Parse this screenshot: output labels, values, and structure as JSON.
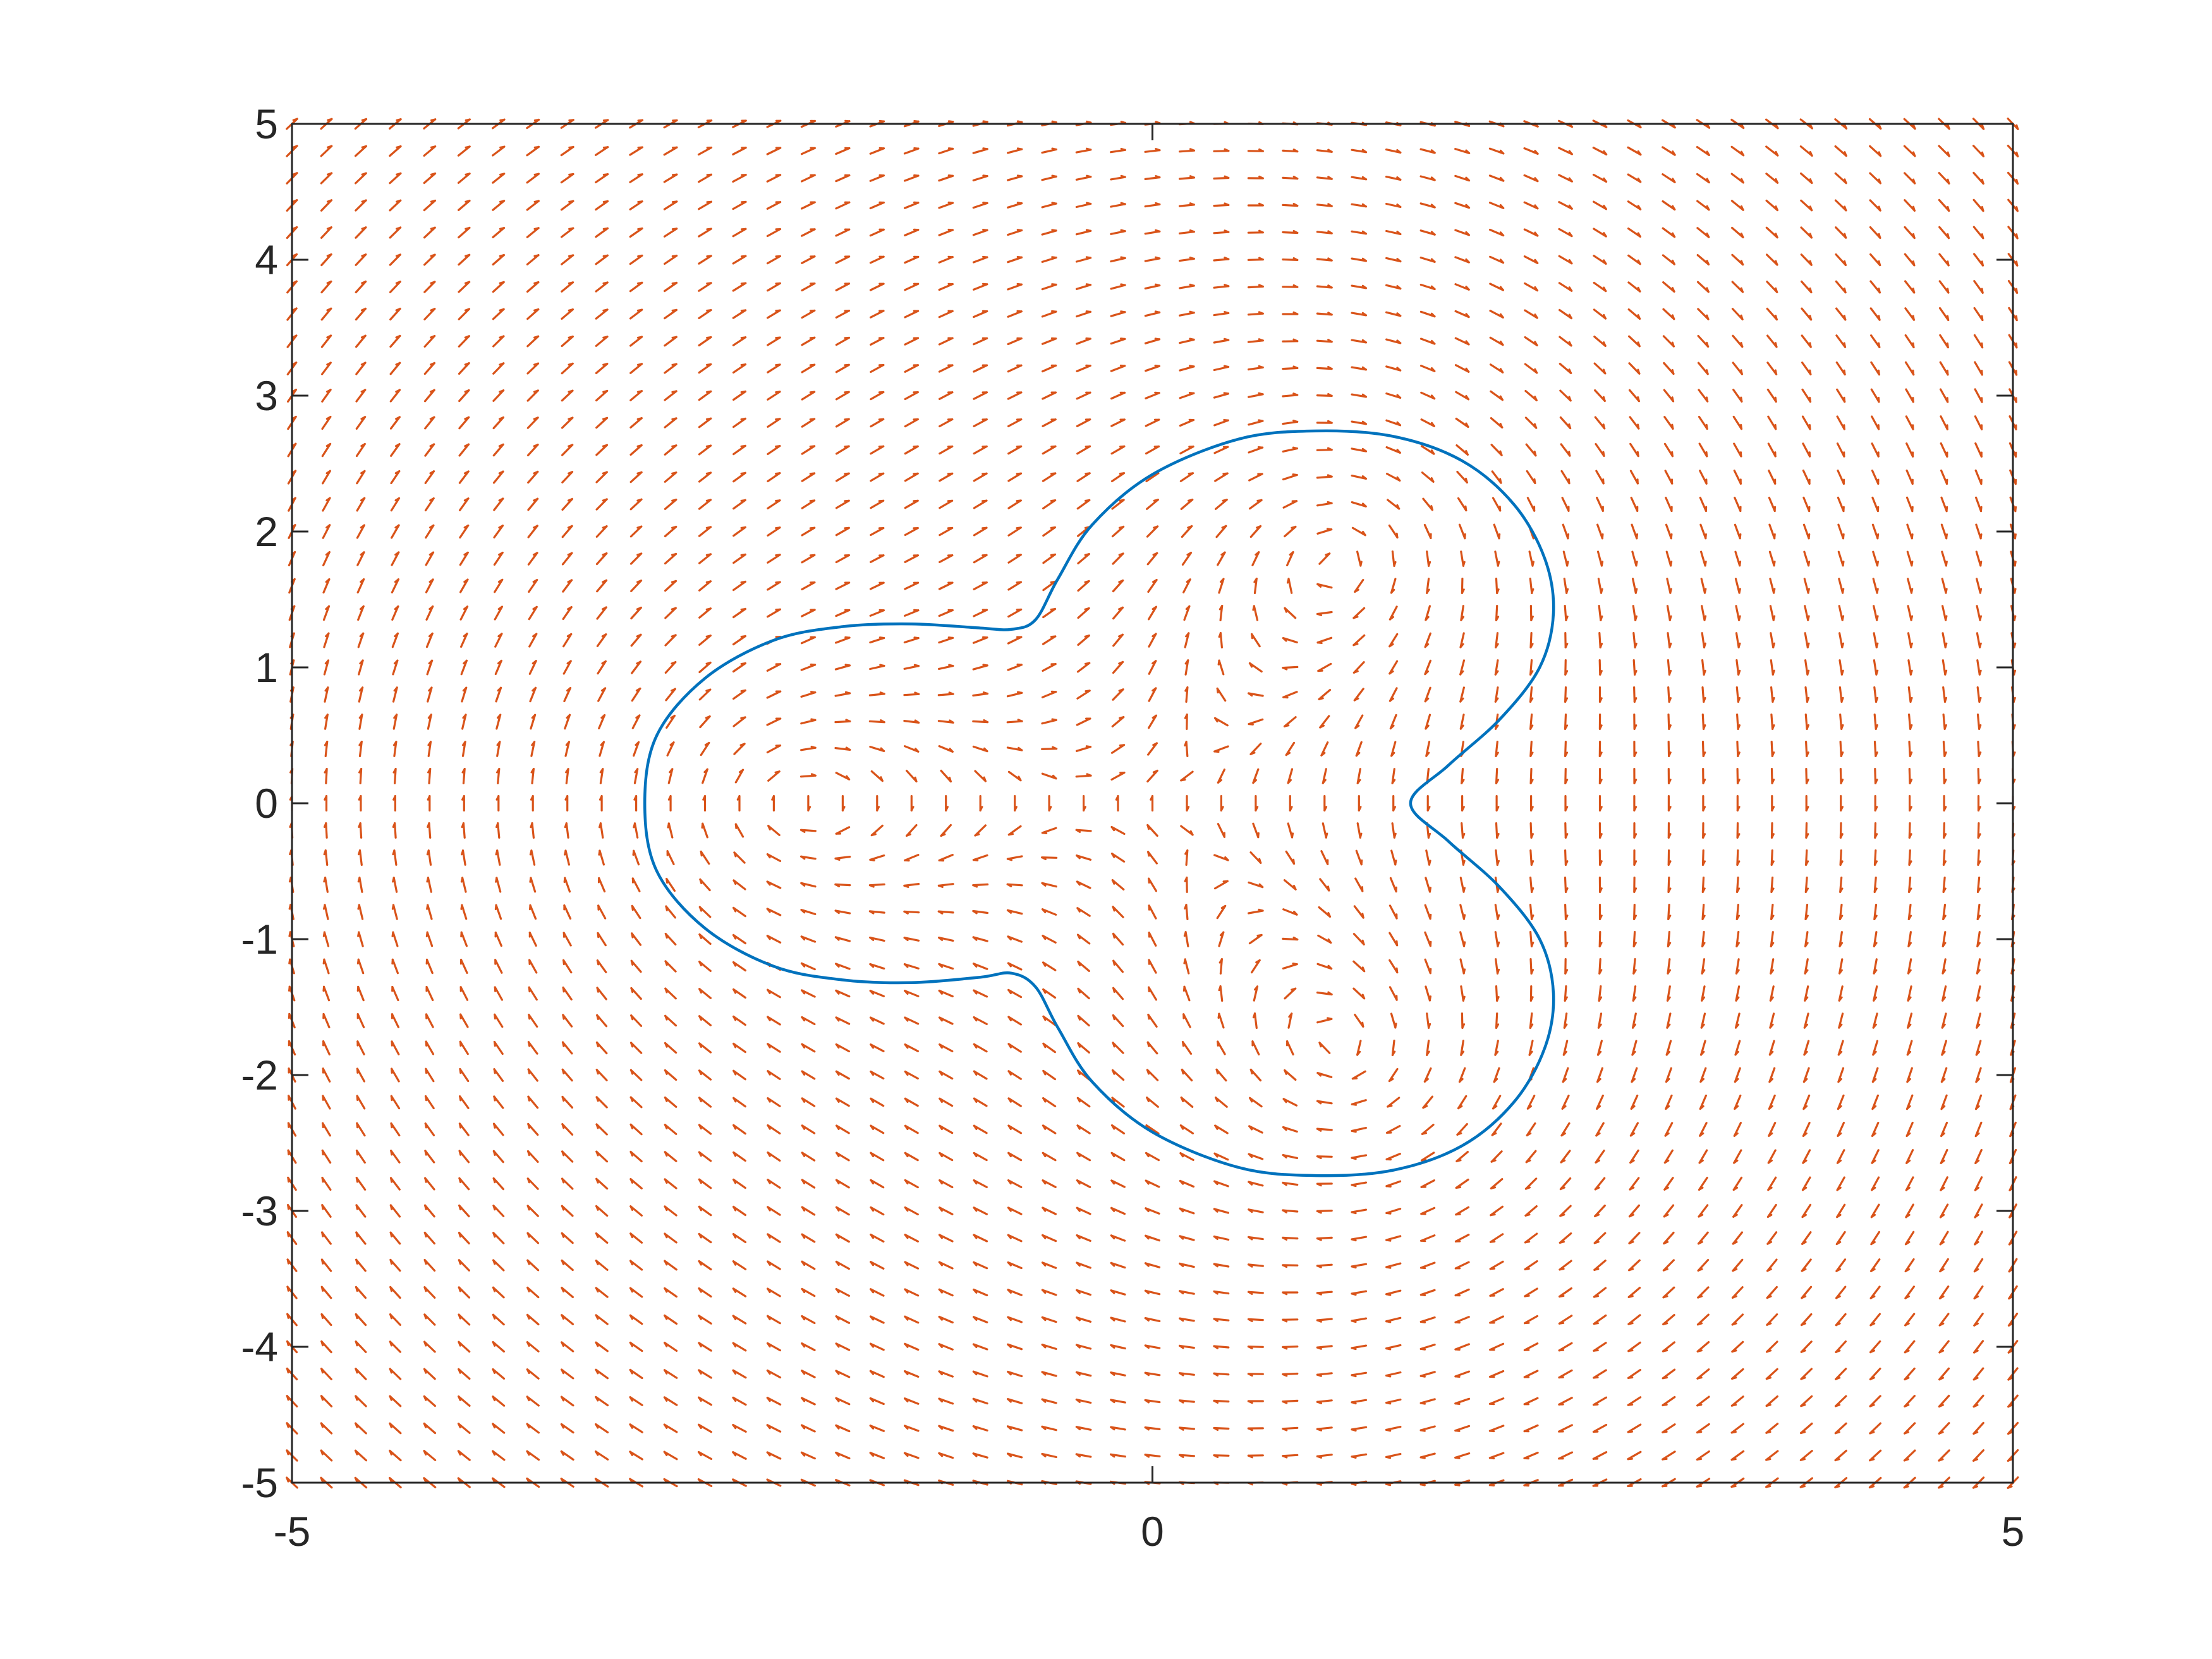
{
  "chart_data": {
    "type": "quiver",
    "title": "",
    "xlabel": "",
    "ylabel": "",
    "xlim": [
      -5,
      5
    ],
    "ylim": [
      -5,
      5
    ],
    "grid": false,
    "legend": "none",
    "x_ticks": [
      -5,
      0,
      5
    ],
    "x_tick_labels": [
      "-5",
      "0",
      "5"
    ],
    "y_ticks": [
      -5,
      -4,
      -3,
      -2,
      -1,
      0,
      1,
      2,
      3,
      4,
      5
    ],
    "y_tick_labels": [
      "-5",
      "-4",
      "-3",
      "-2",
      "-1",
      "0",
      "1",
      "2",
      "3",
      "4",
      "5"
    ],
    "series": [
      {
        "kind": "vector_field",
        "color": "#D95319",
        "grid_x": [
          -5,
          5
        ],
        "grid_y": [
          -5,
          5
        ],
        "grid_points": 51,
        "field": "rotation about three vortices at (-2.3, 0), (1.2, 2.0), (1.2, -2.0)",
        "vortices": [
          [
            -2.3,
            0.0
          ],
          [
            1.2,
            2.0
          ],
          [
            1.2,
            -2.0
          ]
        ]
      },
      {
        "kind": "curve",
        "color": "#0072BD",
        "closed": true,
        "points": [
          [
            0.95,
            2.74
          ],
          [
            1.4,
            2.7
          ],
          [
            1.8,
            2.52
          ],
          [
            2.1,
            2.2
          ],
          [
            2.28,
            1.8
          ],
          [
            2.33,
            1.4
          ],
          [
            2.25,
            1.0
          ],
          [
            2.02,
            0.62
          ],
          [
            1.72,
            0.28
          ],
          [
            1.5,
            0.0
          ],
          [
            1.72,
            -0.28
          ],
          [
            2.02,
            -0.62
          ],
          [
            2.25,
            -1.0
          ],
          [
            2.33,
            -1.4
          ],
          [
            2.28,
            -1.8
          ],
          [
            2.1,
            -2.2
          ],
          [
            1.8,
            -2.52
          ],
          [
            1.4,
            -2.7
          ],
          [
            0.95,
            -2.74
          ],
          [
            0.5,
            -2.68
          ],
          [
            0.0,
            -2.42
          ],
          [
            -0.35,
            -2.05
          ],
          [
            -0.55,
            -1.65
          ],
          [
            -0.68,
            -1.35
          ],
          [
            -0.82,
            -1.25
          ],
          [
            -1.0,
            -1.28
          ],
          [
            -1.4,
            -1.32
          ],
          [
            -1.8,
            -1.3
          ],
          [
            -2.2,
            -1.2
          ],
          [
            -2.6,
            -0.92
          ],
          [
            -2.88,
            -0.5
          ],
          [
            -2.95,
            0.0
          ],
          [
            -2.88,
            0.5
          ],
          [
            -2.6,
            0.92
          ],
          [
            -2.2,
            1.2
          ],
          [
            -1.8,
            1.3
          ],
          [
            -1.4,
            1.32
          ],
          [
            -1.0,
            1.29
          ],
          [
            -0.82,
            1.28
          ],
          [
            -0.68,
            1.35
          ],
          [
            -0.55,
            1.65
          ],
          [
            -0.35,
            2.05
          ],
          [
            0.0,
            2.42
          ],
          [
            0.5,
            2.68
          ]
        ]
      }
    ]
  }
}
